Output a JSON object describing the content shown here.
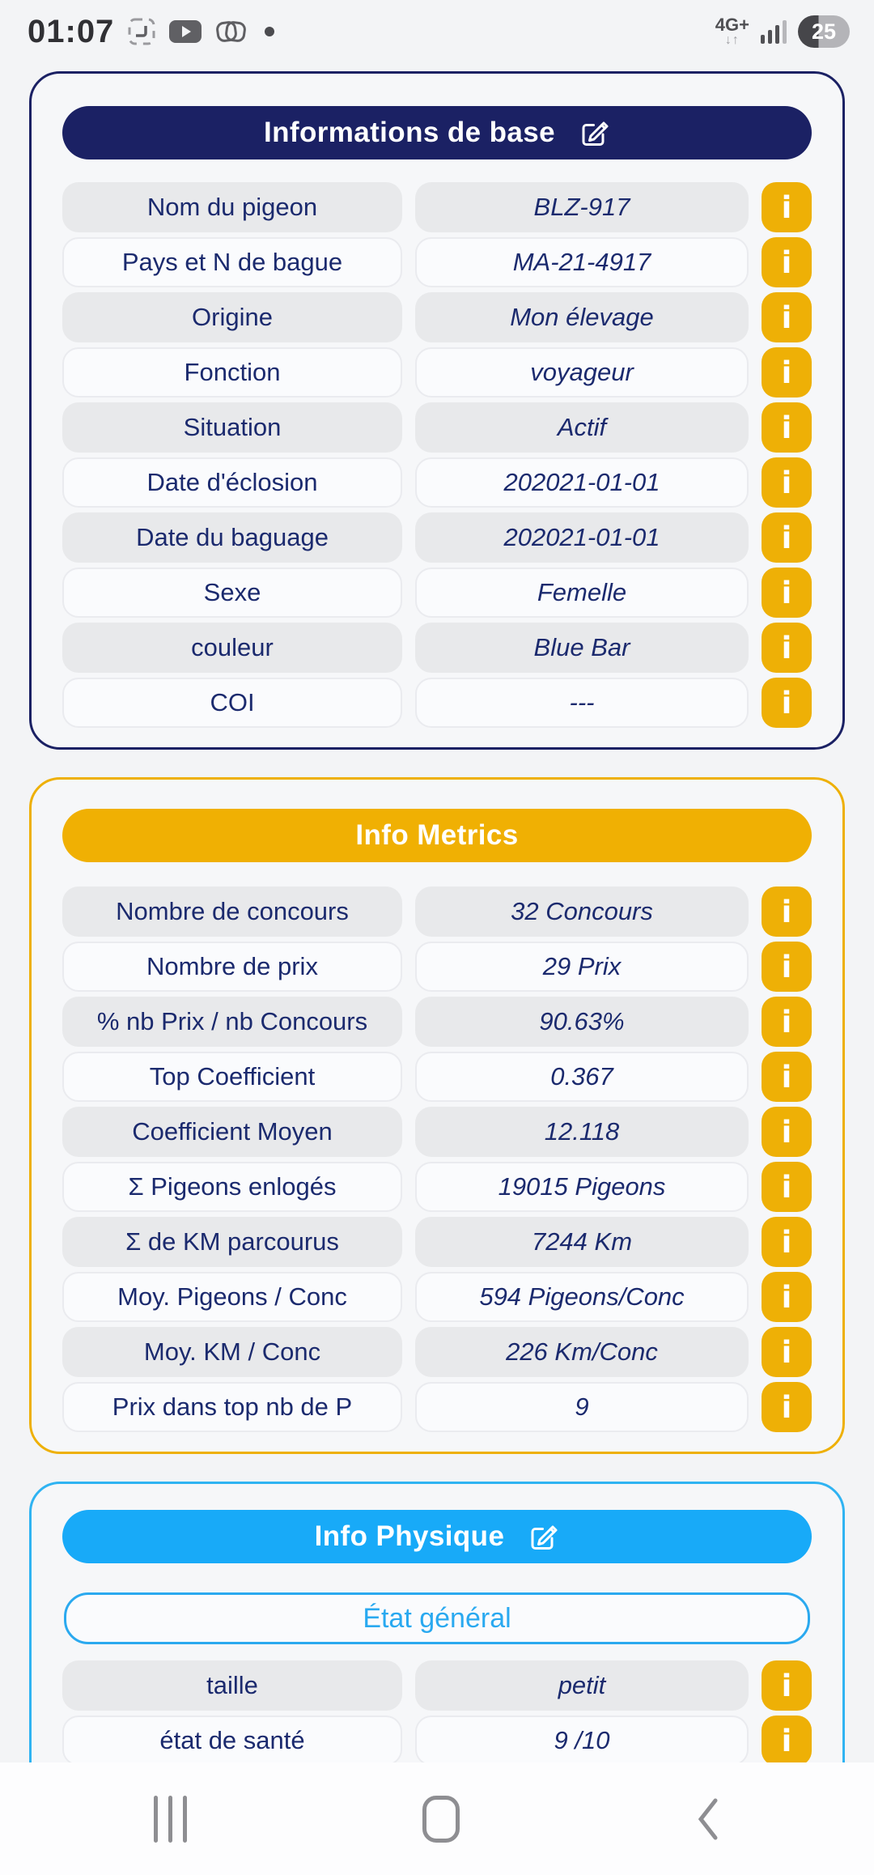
{
  "status_bar": {
    "time": "01:07",
    "network_label": "4G+",
    "network_arrows": "↓↑",
    "battery_percent": "25"
  },
  "icons": {
    "info_glyph": "i"
  },
  "theme": {
    "navy": "#1b2164",
    "gold": "#eeb006",
    "header_gold": "#f0b003",
    "blue": "#18aaf8",
    "blue_border": "#2fb3f2",
    "text_navy": "#1b2a6e",
    "row_gray": "#e8e9eb"
  },
  "cards": [
    {
      "title": "Informations de base",
      "rows": [
        {
          "label": "Nom du pigeon",
          "value": "BLZ-917"
        },
        {
          "label": "Pays et N de bague",
          "value": "MA-21-4917"
        },
        {
          "label": "Origine",
          "value": "Mon élevage"
        },
        {
          "label": "Fonction",
          "value": "voyageur"
        },
        {
          "label": "Situation",
          "value": "Actif"
        },
        {
          "label": "Date d'éclosion",
          "value": "202021-01-01"
        },
        {
          "label": "Date du baguage",
          "value": "202021-01-01"
        },
        {
          "label": "Sexe",
          "value": "Femelle"
        },
        {
          "label": "couleur",
          "value": "Blue Bar"
        },
        {
          "label": "COI",
          "value": "---"
        }
      ]
    },
    {
      "title": "Info Metrics",
      "rows": [
        {
          "label": "Nombre de concours",
          "value": "32 Concours"
        },
        {
          "label": "Nombre de prix",
          "value": "29 Prix"
        },
        {
          "label": "% nb Prix / nb Concours",
          "value": "90.63%"
        },
        {
          "label": "Top Coefficient",
          "value": "0.367"
        },
        {
          "label": "Coefficient Moyen",
          "value": "12.118"
        },
        {
          "label": "Σ Pigeons enlogés",
          "value": "19015 Pigeons"
        },
        {
          "label": "Σ de KM parcourus",
          "value": "7244 Km"
        },
        {
          "label": "Moy. Pigeons / Conc",
          "value": "594 Pigeons/Conc"
        },
        {
          "label": "Moy. KM / Conc",
          "value": "226 Km/Conc"
        },
        {
          "label": "Prix dans top nb de P",
          "value": "9"
        }
      ]
    },
    {
      "title": "Info Physique",
      "subheader": "État général",
      "rows": [
        {
          "label": "taille",
          "value": "petit"
        },
        {
          "label": "état de santé",
          "value": "9 /10"
        }
      ]
    }
  ]
}
